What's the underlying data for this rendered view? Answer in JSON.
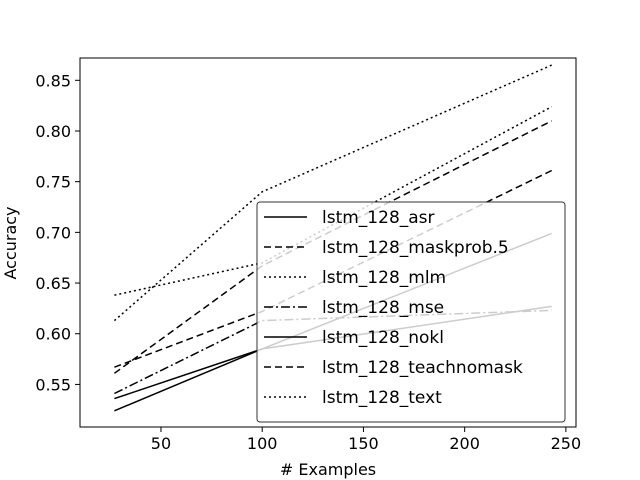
{
  "chart_data": {
    "type": "line",
    "title": "",
    "xlabel": "# Examples",
    "ylabel": "Accuracy",
    "xlim": [
      10,
      255
    ],
    "ylim": [
      0.508,
      0.872
    ],
    "xticks": [
      50,
      100,
      150,
      200,
      250
    ],
    "xtick_labels": [
      "50",
      "100",
      "150",
      "200",
      "250"
    ],
    "yticks": [
      0.55,
      0.6,
      0.65,
      0.7,
      0.75,
      0.8,
      0.85
    ],
    "ytick_labels": [
      "0.55",
      "0.60",
      "0.65",
      "0.70",
      "0.75",
      "0.80",
      "0.85"
    ],
    "grid": false,
    "legend_position": "lower-right",
    "series": [
      {
        "name": "lstm_128_asr",
        "style": "solid",
        "color": "#000000",
        "x": [
          27,
          100,
          243
        ],
        "y": [
          0.536,
          0.585,
          0.699
        ]
      },
      {
        "name": "lstm_128_maskprob.5",
        "style": "dashed",
        "color": "#000000",
        "x": [
          27,
          100,
          243
        ],
        "y": [
          0.567,
          0.622,
          0.761
        ]
      },
      {
        "name": "lstm_128_mlm",
        "style": "dotted",
        "color": "#000000",
        "x": [
          27,
          100,
          243
        ],
        "y": [
          0.638,
          0.67,
          0.824
        ]
      },
      {
        "name": "lstm_128_mse",
        "style": "dashdot",
        "color": "#000000",
        "x": [
          27,
          100,
          243
        ],
        "y": [
          0.541,
          0.613,
          0.623
        ]
      },
      {
        "name": "lstm_128_nokl",
        "style": "solid",
        "color": "#000000",
        "x": [
          27,
          100,
          243
        ],
        "y": [
          0.524,
          0.585,
          0.627
        ]
      },
      {
        "name": "lstm_128_teachnomask",
        "style": "dashed",
        "color": "#000000",
        "x": [
          27,
          100,
          243
        ],
        "y": [
          0.561,
          0.667,
          0.81
        ]
      },
      {
        "name": "lstm_128_text",
        "style": "dotted",
        "color": "#000000",
        "x": [
          27,
          100,
          243
        ],
        "y": [
          0.613,
          0.74,
          0.865
        ]
      }
    ]
  }
}
